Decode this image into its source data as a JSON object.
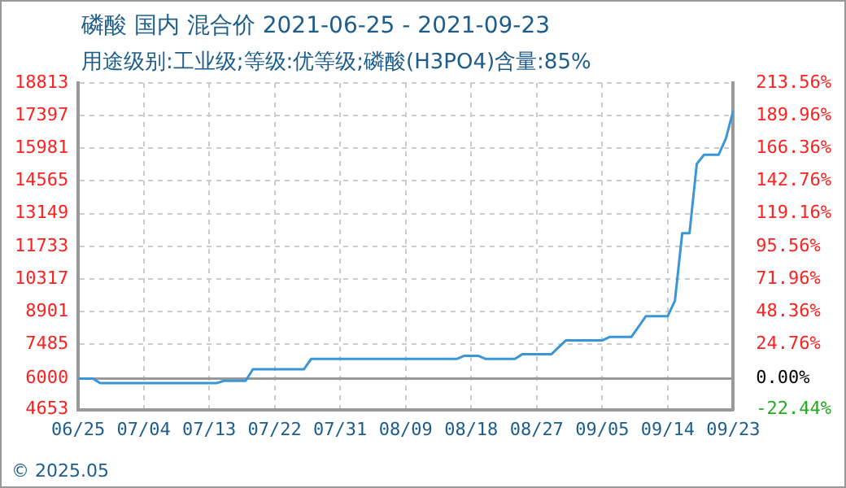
{
  "chart_data": {
    "type": "line",
    "title": "磷酸 国内 混合价 2021-06-25 - 2021-09-23",
    "subtitle": "用途级别:工业级;等级:优等级;磷酸(H3PO4)含量:85%",
    "annotations": [
      "© 2025.05"
    ],
    "x": [
      "2021-06-25",
      "2021-06-27",
      "2021-06-28",
      "2021-07-14",
      "2021-07-15",
      "2021-07-18",
      "2021-07-19",
      "2021-07-26",
      "2021-07-27",
      "2021-08-16",
      "2021-08-17",
      "2021-08-19",
      "2021-08-20",
      "2021-08-24",
      "2021-08-25",
      "2021-08-29",
      "2021-08-31",
      "2021-09-05",
      "2021-09-06",
      "2021-09-09",
      "2021-09-11",
      "2021-09-14",
      "2021-09-15",
      "2021-09-16",
      "2021-09-17",
      "2021-09-18",
      "2021-09-19",
      "2021-09-21",
      "2021-09-22",
      "2021-09-23"
    ],
    "series": [
      {
        "color": "#3a96d6",
        "values": [
          6000,
          6000,
          5800,
          5800,
          5900,
          5900,
          6400,
          6400,
          6850,
          6850,
          6980,
          6980,
          6850,
          6850,
          7050,
          7050,
          7650,
          7650,
          7800,
          7800,
          8700,
          8700,
          9380,
          12300,
          12300,
          15300,
          15700,
          15700,
          16400,
          17600
        ]
      }
    ],
    "xlim": [
      "2021-06-25",
      "2021-09-23"
    ],
    "xticks": [
      {
        "value": "2021-06-25",
        "label": "06/25"
      },
      {
        "value": "2021-07-04",
        "label": "07/04"
      },
      {
        "value": "2021-07-13",
        "label": "07/13"
      },
      {
        "value": "2021-07-22",
        "label": "07/22"
      },
      {
        "value": "2021-07-31",
        "label": "07/31"
      },
      {
        "value": "2021-08-09",
        "label": "08/09"
      },
      {
        "value": "2021-08-18",
        "label": "08/18"
      },
      {
        "value": "2021-08-27",
        "label": "08/27"
      },
      {
        "value": "2021-09-05",
        "label": "09/05"
      },
      {
        "value": "2021-09-14",
        "label": "09/14"
      },
      {
        "value": "2021-09-23",
        "label": "09/23"
      }
    ],
    "ylim": [
      4653,
      18813
    ],
    "yticks": [
      4653,
      6000,
      7485,
      8901,
      10317,
      11733,
      13149,
      14565,
      15981,
      17397,
      18813
    ],
    "y2lim": [
      -22.44,
      213.56
    ],
    "y2ticks": [
      {
        "value": -22.44,
        "label": "-22.44%"
      },
      {
        "value": 0,
        "label": "0.00%"
      },
      {
        "value": 24.76,
        "label": "24.76%"
      },
      {
        "value": 48.36,
        "label": "48.36%"
      },
      {
        "value": 71.96,
        "label": "71.96%"
      },
      {
        "value": 95.56,
        "label": "95.56%"
      },
      {
        "value": 119.16,
        "label": "119.16%"
      },
      {
        "value": 142.76,
        "label": "142.76%"
      },
      {
        "value": 166.36,
        "label": "166.36%"
      },
      {
        "value": 189.96,
        "label": "189.96%"
      },
      {
        "value": 213.56,
        "label": "213.56%"
      }
    ],
    "ref_lines": [
      {
        "axis": "y",
        "value": 6000,
        "color": "#999999"
      }
    ],
    "grid": true,
    "legend": false,
    "marker": "none",
    "line_style": "solid"
  }
}
